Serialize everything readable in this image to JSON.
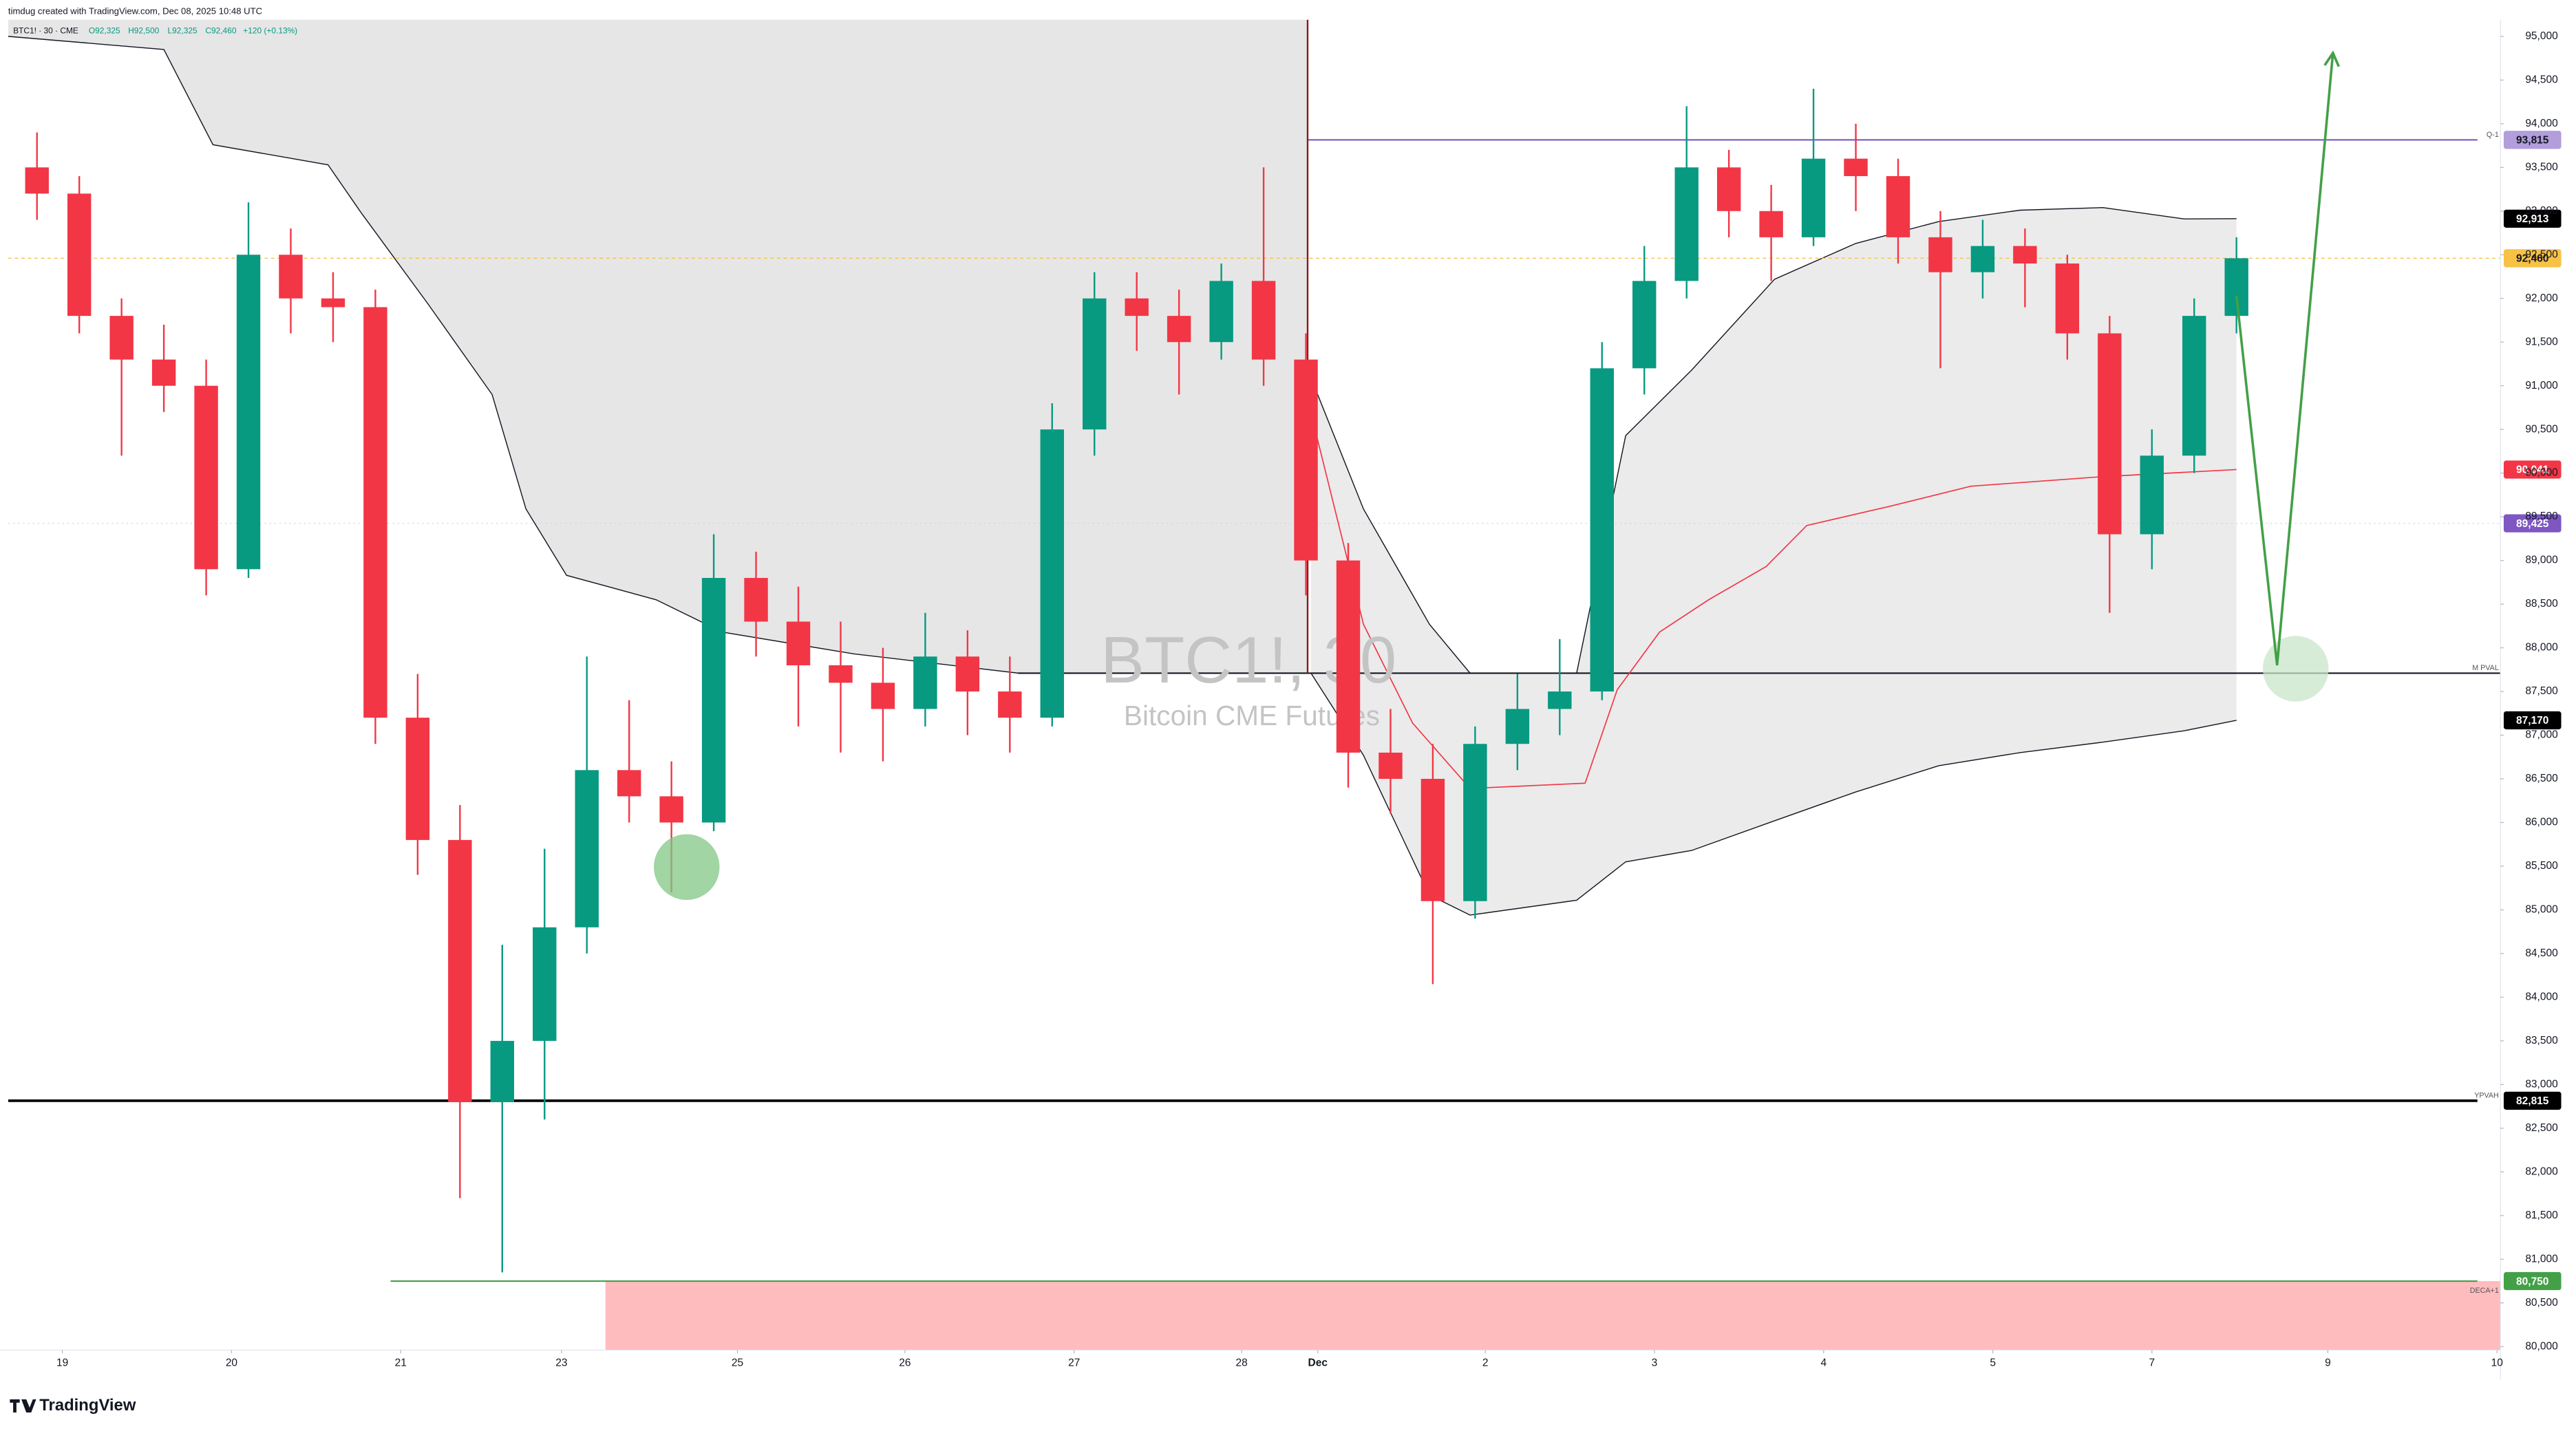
{
  "header": {
    "credit": "timdug created with TradingView.com, Dec 08, 2025 10:48 UTC",
    "symbol": "BTC1! · 30 · CME",
    "ohlc": {
      "open": "O92,325",
      "high": "H92,500",
      "low": "L92,325",
      "close": "C92,460",
      "change": "+120 (+0.13%)"
    }
  },
  "watermark": {
    "symbol": "BTC1!, 30",
    "name": "Bitcoin CME Futures"
  },
  "footer": {
    "brand": "TradingView"
  },
  "chart_data": {
    "type": "candlestick",
    "up_color": "#089981",
    "down_color": "#f23645",
    "x": [
      -0.15,
      0.1,
      0.35,
      0.6,
      0.85,
      1.1,
      1.35,
      1.6,
      1.85,
      2.1,
      2.35,
      2.6,
      2.85,
      3.1,
      3.35,
      3.6,
      3.85,
      4.1,
      4.35,
      4.6,
      4.85,
      5.1,
      5.35,
      5.6,
      5.85,
      6.1,
      6.35,
      6.6,
      6.85,
      7.1,
      7.35,
      7.6,
      7.85,
      8.1,
      8.35,
      8.6,
      8.85,
      9.1,
      9.35,
      9.6,
      9.85,
      10.1,
      10.35,
      10.6,
      10.85,
      11.1,
      11.35,
      11.6,
      11.85,
      12.1,
      12.35,
      12.6,
      12.85
    ],
    "open": [
      93500,
      93200,
      91800,
      91300,
      91000,
      88900,
      92500,
      92000,
      91900,
      87200,
      85800,
      82800,
      83500,
      84800,
      86600,
      86300,
      86000,
      88800,
      88300,
      87800,
      87600,
      87300,
      87900,
      87500,
      87200,
      90500,
      92000,
      91800,
      91500,
      92200,
      91300,
      89000,
      86800,
      86500,
      85100,
      86900,
      87300,
      87500,
      91200,
      92200,
      93500,
      93000,
      92700,
      93600,
      93400,
      92700,
      92300,
      92600,
      92400,
      91600,
      89300,
      90200,
      91800
    ],
    "high": [
      93900,
      93400,
      92000,
      91700,
      91300,
      93100,
      92800,
      92300,
      92100,
      87700,
      86200,
      84600,
      85700,
      87900,
      87400,
      86700,
      89300,
      89100,
      88700,
      88300,
      88000,
      88400,
      88200,
      87900,
      90800,
      92300,
      92300,
      92100,
      92400,
      93500,
      91600,
      89200,
      87300,
      86900,
      87100,
      87700,
      88100,
      91500,
      92600,
      94200,
      93700,
      93300,
      94400,
      94000,
      93600,
      93000,
      92900,
      92800,
      92500,
      91800,
      90500,
      92000,
      92700
    ],
    "low": [
      92900,
      91600,
      90200,
      90700,
      88600,
      88800,
      91600,
      91500,
      86900,
      85400,
      81700,
      80850,
      82600,
      84500,
      86000,
      85200,
      85900,
      87900,
      87100,
      86800,
      86700,
      87100,
      87000,
      86800,
      87100,
      90200,
      91400,
      90900,
      91300,
      91000,
      88600,
      86400,
      86100,
      84150,
      84900,
      86600,
      87000,
      87400,
      90900,
      92000,
      92700,
      92200,
      92600,
      93000,
      92400,
      91200,
      92000,
      91900,
      91300,
      88400,
      88900,
      90000,
      91600
    ],
    "close": [
      93200,
      91800,
      91300,
      91000,
      88900,
      92500,
      92000,
      91900,
      87200,
      85800,
      82800,
      83500,
      84800,
      86600,
      86300,
      86000,
      88800,
      88300,
      87800,
      87600,
      87300,
      87900,
      87500,
      87200,
      90500,
      92000,
      91800,
      91500,
      92200,
      91300,
      89000,
      86800,
      86500,
      85100,
      86900,
      87300,
      87500,
      91200,
      92200,
      93500,
      93000,
      92700,
      93600,
      93400,
      92700,
      92300,
      92600,
      92400,
      91600,
      89300,
      90200,
      91800,
      92460
    ],
    "xlim": [
      -0.32,
      14.41
    ],
    "ylim": [
      79960,
      95190
    ],
    "xticks": [
      {
        "value": 0,
        "label": "19"
      },
      {
        "value": 1.0,
        "label": "20"
      },
      {
        "value": 2.0,
        "label": "21"
      },
      {
        "value": 2.95,
        "label": "23"
      },
      {
        "value": 3.99,
        "label": "25"
      },
      {
        "value": 4.98,
        "label": "26"
      },
      {
        "value": 5.98,
        "label": "27"
      },
      {
        "value": 6.97,
        "label": "28"
      },
      {
        "value": 7.42,
        "label": "Dec"
      },
      {
        "value": 8.41,
        "label": "2"
      },
      {
        "value": 9.41,
        "label": "3"
      },
      {
        "value": 10.41,
        "label": "4"
      },
      {
        "value": 11.41,
        "label": "5"
      },
      {
        "value": 12.35,
        "label": "7"
      },
      {
        "value": 13.39,
        "label": "9"
      },
      {
        "value": 14.39,
        "label": "10"
      }
    ],
    "yticks": [
      {
        "value": 80000,
        "label": "80,000"
      },
      {
        "value": 80500,
        "label": "80,500"
      },
      {
        "value": 81000,
        "label": "81,000"
      },
      {
        "value": 81500,
        "label": "81,500"
      },
      {
        "value": 82000,
        "label": "82,000"
      },
      {
        "value": 82500,
        "label": "82,500"
      },
      {
        "value": 83000,
        "label": "83,000"
      },
      {
        "value": 83500,
        "label": "83,500"
      },
      {
        "value": 84000,
        "label": "84,000"
      },
      {
        "value": 84500,
        "label": "84,500"
      },
      {
        "value": 85000,
        "label": "85,000"
      },
      {
        "value": 85500,
        "label": "85,500"
      },
      {
        "value": 86000,
        "label": "86,000"
      },
      {
        "value": 86500,
        "label": "86,500"
      },
      {
        "value": 87000,
        "label": "87,000"
      },
      {
        "value": 87500,
        "label": "87,500"
      },
      {
        "value": 88000,
        "label": "88,000"
      },
      {
        "value": 88500,
        "label": "88,500"
      },
      {
        "value": 89000,
        "label": "89,000"
      },
      {
        "value": 89500,
        "label": "89,500"
      },
      {
        "value": 90000,
        "label": "90,000"
      },
      {
        "value": 90500,
        "label": "90,500"
      },
      {
        "value": 91000,
        "label": "91,000"
      },
      {
        "value": 91500,
        "label": "91,500"
      },
      {
        "value": 92000,
        "label": "92,000"
      },
      {
        "value": 92500,
        "label": "92,500"
      },
      {
        "value": 93000,
        "label": "93,000"
      },
      {
        "value": 93500,
        "label": "93,500"
      },
      {
        "value": 94000,
        "label": "94,000"
      },
      {
        "value": 94500,
        "label": "94,500"
      },
      {
        "value": 95000,
        "label": "95,000"
      }
    ],
    "bands": [
      {
        "color": "#e6e6e6",
        "x": [
          -0.32,
          0.6,
          0.89,
          1.57,
          1.77,
          2.16,
          2.54,
          2.74,
          2.98,
          3.51,
          3.9,
          4.68,
          5.65,
          7.36
        ],
        "lower": [
          95000,
          94850,
          93760,
          93530,
          92970,
          91940,
          90900,
          89590,
          88830,
          88550,
          88180,
          87930,
          87710,
          87710
        ]
      },
      {
        "color": "#ebebeb",
        "x": [
          7.38,
          7.69,
          8.08,
          8.32,
          8.95,
          9.24,
          9.63,
          10.12,
          10.6,
          11.09,
          11.57,
          12.06,
          12.54,
          12.85
        ],
        "upper": [
          91090,
          89590,
          88270,
          87710,
          87710,
          90430,
          91180,
          92220,
          92630,
          92880,
          93010,
          93040,
          92910,
          92913
        ],
        "lower": [
          87710,
          86770,
          85170,
          84940,
          85110,
          85550,
          85680,
          86020,
          86350,
          86650,
          86800,
          86920,
          87050,
          87170
        ]
      }
    ],
    "vwap": {
      "color": "#f23645",
      "x": [
        7.4,
        7.69,
        7.98,
        8.32,
        9.0,
        9.19,
        9.44,
        9.73,
        10.07,
        10.31,
        10.8,
        11.28,
        12.06,
        12.85
      ],
      "values": [
        90530,
        88270,
        87140,
        86390,
        86450,
        87520,
        88180,
        88550,
        88930,
        89400,
        89620,
        89850,
        89960,
        90041
      ]
    },
    "anchor": {
      "x": 7.36,
      "value": 87710,
      "color": "#8b1a1a"
    },
    "levels": [
      {
        "name": "Q-1",
        "value": 93815,
        "label": "93,815",
        "start": 7.36,
        "color": "#7e57c2",
        "tag_color": "#b39ddb",
        "text_color": "#131722"
      },
      {
        "name": "M PVAL",
        "value": 87710,
        "start": 5.65,
        "color": "#131722"
      },
      {
        "name": "YPVAH",
        "value": 82815,
        "label": "82,815",
        "start": -0.32,
        "color": "#000000",
        "tag_color": "#000000",
        "text_color": "#ffffff"
      },
      {
        "name": "DECA+1",
        "value": 80750,
        "label": "80,750",
        "start": 1.94,
        "color": "#43a047",
        "tag_color": "#43a047",
        "text_color": "#ffffff"
      }
    ],
    "zone": {
      "high": 80750,
      "low": 79960,
      "start": 3.21,
      "color": "#ffbcbf"
    },
    "price_tags": [
      {
        "value": 92913,
        "label": "92,913",
        "tag_color": "#000000",
        "text_color": "#ffffff"
      },
      {
        "value": 92460,
        "label": "92,460",
        "tag_color": "#f7c245",
        "text_color": "#131722",
        "line": "dashed"
      },
      {
        "value": 90041,
        "label": "90,041",
        "tag_color": "#f23645",
        "text_color": "#ffffff"
      },
      {
        "value": 89425,
        "label": "89,425",
        "tag_color": "#7e57c2",
        "text_color": "#ffffff",
        "line": "faint"
      },
      {
        "value": 87170,
        "label": "87,170",
        "tag_color": "#000000",
        "text_color": "#ffffff"
      }
    ],
    "projection": {
      "color": "#43a047",
      "x": [
        12.85,
        13.09,
        13.42
      ],
      "values": [
        92030,
        87800,
        94810
      ]
    },
    "markers": [
      {
        "x": 3.69,
        "value": 85490,
        "color": "#81c784"
      },
      {
        "x": 13.2,
        "value": 87760,
        "color": "#c8e6c9"
      }
    ]
  }
}
